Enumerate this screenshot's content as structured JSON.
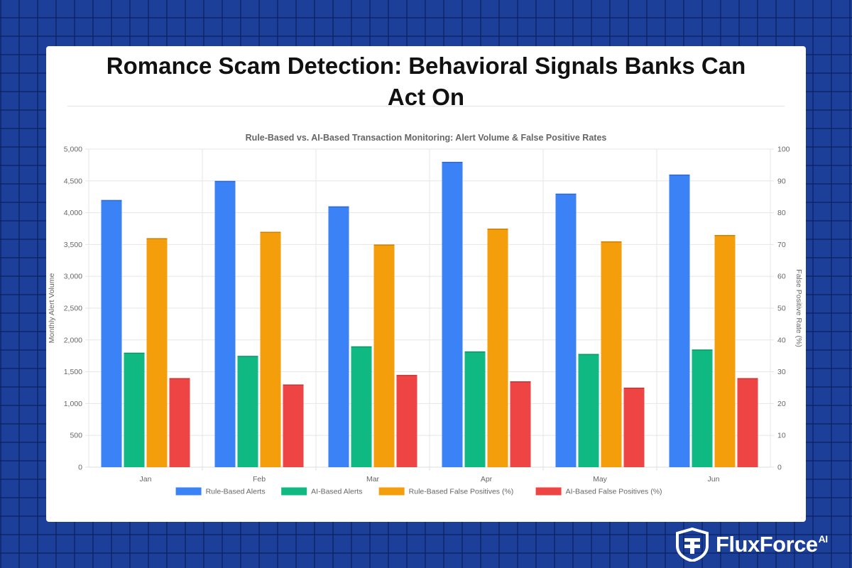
{
  "page": {
    "title_line1": "Romance Scam Detection: Behavioral Signals Banks Can",
    "title_line2": "Act On"
  },
  "brand": {
    "name": "FluxForce",
    "suffix": "AI",
    "icon": "shield-logo-icon"
  },
  "chart_data": {
    "type": "bar",
    "title": "Rule-Based vs. AI-Based Transaction Monitoring: Alert Volume & False Positive Rates",
    "categories": [
      "Jan",
      "Feb",
      "Mar",
      "Apr",
      "May",
      "Jun"
    ],
    "y_left": {
      "label": "Monthly Alert Volume",
      "min": 0,
      "max": 5000,
      "step": 500
    },
    "y_right": {
      "label": "False Positive Rate (%)",
      "min": 0,
      "max": 100,
      "step": 10
    },
    "grid": true,
    "legend_position": "bottom",
    "series": [
      {
        "name": "Rule-Based Alerts",
        "axis": "left",
        "color": "#3b82f6",
        "values": [
          4200,
          4500,
          4100,
          4800,
          4300,
          4600
        ]
      },
      {
        "name": "AI-Based Alerts",
        "axis": "left",
        "color": "#10b981",
        "values": [
          1800,
          1750,
          1900,
          1820,
          1780,
          1850
        ]
      },
      {
        "name": "Rule-Based False Positives (%)",
        "axis": "right",
        "color": "#f59e0b",
        "values": [
          72,
          74,
          70,
          75,
          71,
          73
        ]
      },
      {
        "name": "AI-Based False Positives (%)",
        "axis": "right",
        "color": "#ef4444",
        "values": [
          28,
          26,
          29,
          27,
          25,
          28
        ]
      }
    ]
  }
}
